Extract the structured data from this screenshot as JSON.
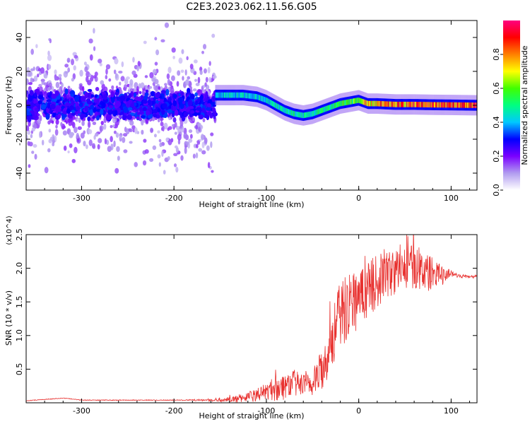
{
  "title": "C2E3.2023.062.11.56.G05",
  "chart_data": [
    {
      "type": "heatmap",
      "title": "C2E3.2023.062.11.56.G05",
      "xlabel": "Height of straight line (km)",
      "ylabel": "Frequency (Hz)",
      "xlim": [
        -360,
        128
      ],
      "ylim": [
        -50,
        50
      ],
      "xticks": [
        "-300",
        "-200",
        "-100",
        "0",
        "100"
      ],
      "yticks": [
        "-40",
        "-20",
        "0",
        "20",
        "40"
      ],
      "colorbar": {
        "label": "Normalized spectral amplitude",
        "range": [
          0.0,
          1.0
        ],
        "ticks": [
          "0.0",
          "0.2",
          "0.4",
          "0.6",
          "0.8"
        ],
        "colormap": [
          "#ffffff",
          "#b19cf0",
          "#7a00ff",
          "#0000ff",
          "#00c8ff",
          "#00ff80",
          "#40ff00",
          "#ffff00",
          "#ff8000",
          "#ff0000",
          "#ff0080"
        ]
      },
      "ridge": {
        "x": [
          -155,
          -140,
          -125,
          -110,
          -100,
          -90,
          -80,
          -70,
          -60,
          -50,
          -40,
          -30,
          -20,
          -10,
          0,
          10,
          20,
          40,
          60,
          80,
          100,
          128
        ],
        "frequency": [
          6,
          6,
          6,
          5,
          3,
          0,
          -3,
          -5,
          -6,
          -5,
          -3,
          -1,
          1,
          2,
          3,
          1,
          1,
          0.5,
          0.5,
          0.3,
          0.2,
          0
        ],
        "amplitude": [
          0.45,
          0.45,
          0.45,
          0.45,
          0.45,
          0.5,
          0.5,
          0.5,
          0.5,
          0.5,
          0.55,
          0.55,
          0.6,
          0.6,
          0.65,
          0.75,
          0.8,
          0.85,
          0.88,
          0.9,
          0.9,
          0.9
        ]
      },
      "noise_region": {
        "x_range": [
          -360,
          -155
        ],
        "typical_amplitude": 0.15,
        "max_amplitude": 0.3
      }
    },
    {
      "type": "line",
      "xlabel": "Height of straight line (km)",
      "ylabel": "SNR (10 * v/v)",
      "y_multiplier": "(x10^4)",
      "xlim": [
        -360,
        128
      ],
      "ylim": [
        0,
        2.5
      ],
      "xticks": [
        "-300",
        "-200",
        "-100",
        "0",
        "100"
      ],
      "yticks": [
        "0.5",
        "1.0",
        "1.5",
        "2.0",
        "2.5"
      ],
      "color": "#e8312f",
      "x": [
        -360,
        -320,
        -300,
        -250,
        -200,
        -150,
        -130,
        -110,
        -100,
        -90,
        -80,
        -70,
        -60,
        -50,
        -40,
        -30,
        -20,
        -10,
        0,
        10,
        20,
        30,
        40,
        50,
        60,
        70,
        80,
        90,
        100,
        110,
        128
      ],
      "y": [
        0.03,
        0.07,
        0.04,
        0.04,
        0.04,
        0.04,
        0.06,
        0.12,
        0.17,
        0.22,
        0.25,
        0.3,
        0.25,
        0.28,
        0.5,
        0.9,
        1.3,
        1.5,
        1.55,
        1.7,
        1.8,
        1.9,
        1.95,
        2.0,
        2.05,
        1.95,
        1.92,
        1.9,
        1.92,
        1.88,
        1.87
      ],
      "spread": [
        0,
        0,
        0,
        0,
        0,
        0.02,
        0.06,
        0.1,
        0.12,
        0.2,
        0.2,
        0.2,
        0.18,
        0.2,
        0.3,
        0.45,
        0.5,
        0.5,
        0.45,
        0.4,
        0.4,
        0.35,
        0.35,
        0.3,
        0.35,
        0.3,
        0.25,
        0.15,
        0.05,
        0.02,
        0.02
      ]
    }
  ]
}
